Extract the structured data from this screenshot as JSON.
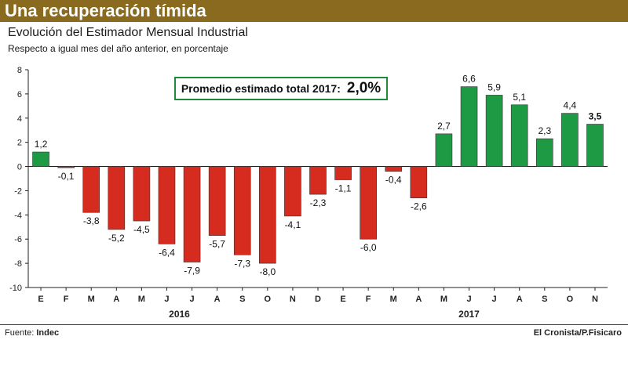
{
  "header": {
    "title": "Una recuperación tímida"
  },
  "subtitle": "Evolución del Estimador Mensual Industrial",
  "note": "Respecto a igual mes del año anterior, en porcentaje",
  "callout": {
    "label": "Promedio estimado total 2017:",
    "value": "2,0%"
  },
  "footer": {
    "source_label": "Fuente:",
    "source_value": "Indec",
    "credit": "El Cronista/P.Fisicaro"
  },
  "colors": {
    "negative": "#d62b1f",
    "positive": "#1e9a45",
    "header": "#8a6a1e",
    "axis": "#222222"
  },
  "chart_data": {
    "type": "bar",
    "title": "Evolución del Estimador Mensual Industrial",
    "ylabel": "Respecto a igual mes del año anterior, en porcentaje",
    "ylim": [
      -10,
      8
    ],
    "yticks": [
      8,
      6,
      4,
      2,
      0,
      -2,
      -4,
      -6,
      -8,
      -10
    ],
    "categories": [
      "E",
      "F",
      "M",
      "A",
      "M",
      "J",
      "J",
      "A",
      "S",
      "O",
      "N",
      "D",
      "E",
      "F",
      "M",
      "A",
      "M",
      "J",
      "J",
      "A",
      "S",
      "O",
      "N"
    ],
    "values": [
      1.2,
      -0.1,
      -3.8,
      -5.2,
      -4.5,
      -6.4,
      -7.9,
      -5.7,
      -7.3,
      -8.0,
      -4.1,
      -2.3,
      -1.1,
      -6.0,
      -0.4,
      -2.6,
      2.7,
      6.6,
      5.9,
      5.1,
      2.3,
      4.4,
      3.5
    ],
    "labels": [
      "1,2",
      "-0,1",
      "-3,8",
      "-5,2",
      "-4,5",
      "-6,4",
      "-7,9",
      "-5,7",
      "-7,3",
      "-8,0",
      "-4,1",
      "-2,3",
      "-1,1",
      "-6,0",
      "-0,4",
      "-2,6",
      "2,7",
      "6,6",
      "5,9",
      "5,1",
      "2,3",
      "4,4",
      "3,5"
    ],
    "year_groups": [
      {
        "label": "2016",
        "start": 0,
        "end": 11
      },
      {
        "label": "2017",
        "start": 12,
        "end": 22
      }
    ]
  }
}
